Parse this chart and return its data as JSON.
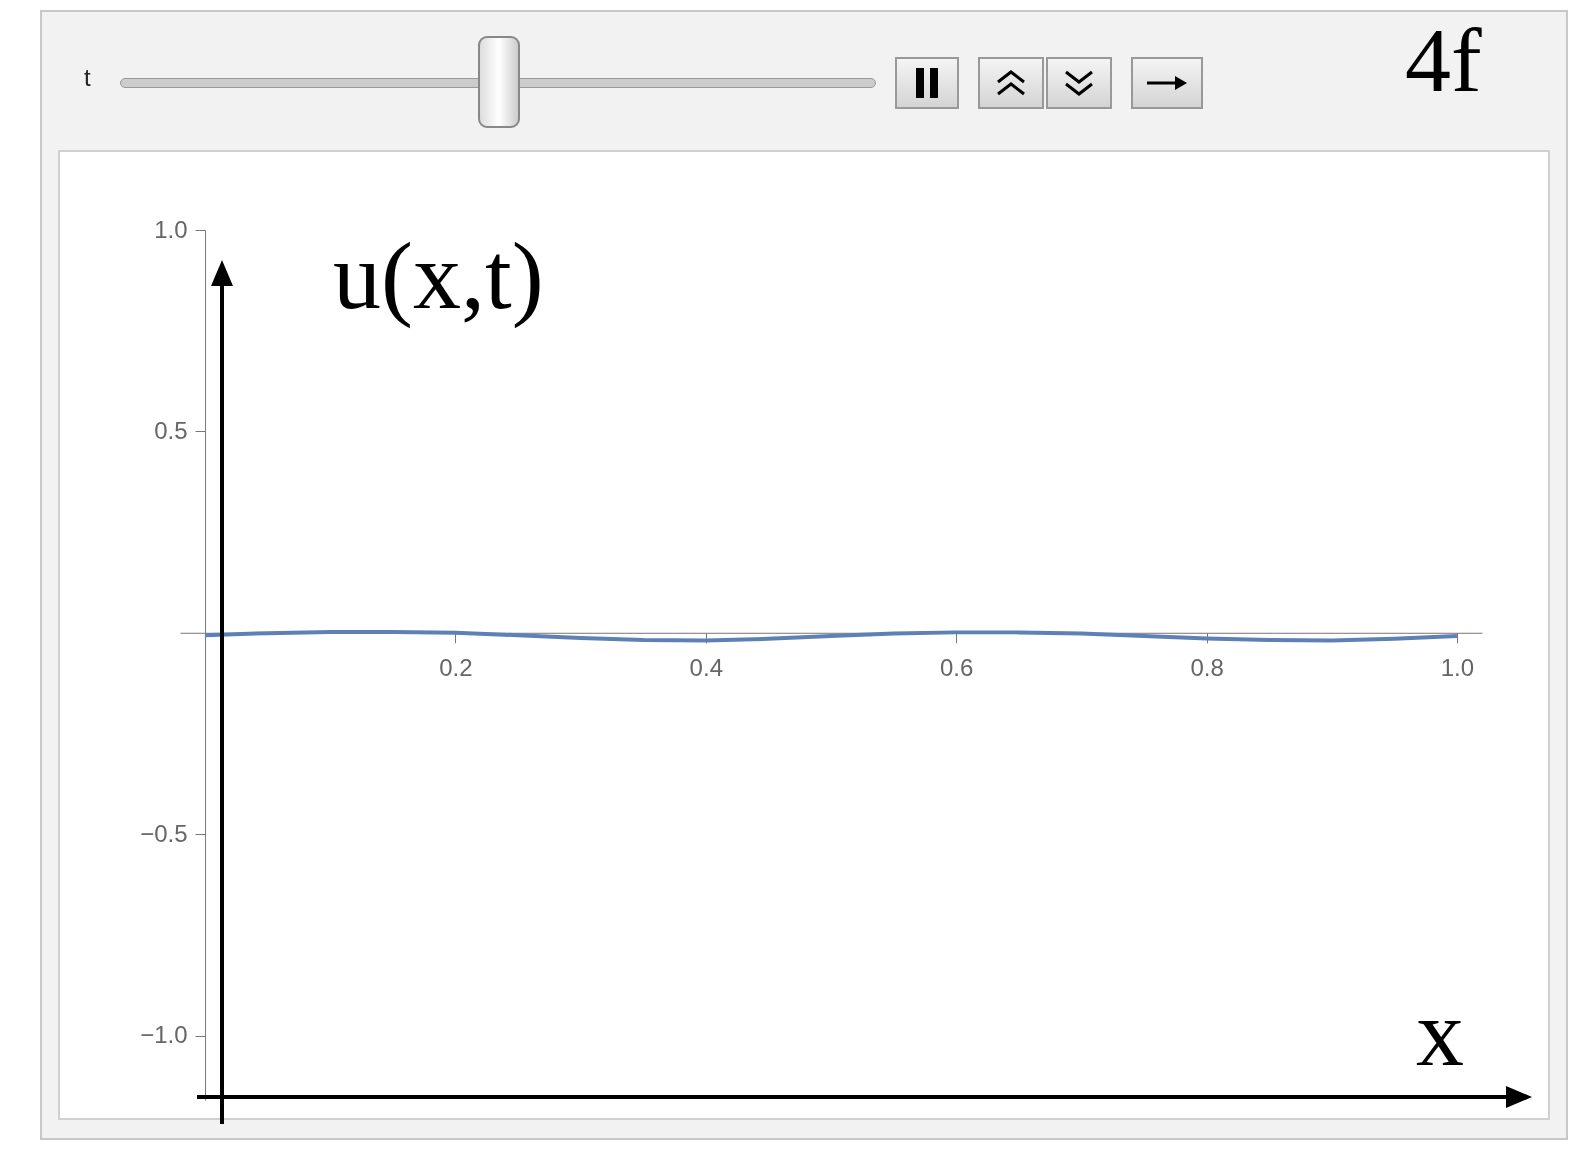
{
  "chart_data": {
    "type": "line",
    "title": "4f",
    "xlabel": "x",
    "ylabel": "u(x,t)",
    "annotations": [
      "t"
    ],
    "x": [
      0,
      0.05,
      0.1,
      0.15,
      0.2,
      0.25,
      0.3,
      0.35,
      0.4,
      0.45,
      0.5,
      0.55,
      0.6,
      0.65,
      0.7,
      0.75,
      0.8,
      0.85,
      0.9,
      0.95,
      1.0
    ],
    "series": [
      {
        "color": "#5e81b5",
        "values": [
          -0.006,
          -0.001,
          0.002,
          0.002,
          0.0,
          -0.006,
          -0.013,
          -0.018,
          -0.019,
          -0.015,
          -0.008,
          -0.002,
          0.001,
          0.001,
          -0.002,
          -0.008,
          -0.014,
          -0.018,
          -0.019,
          -0.015,
          -0.008
        ]
      }
    ],
    "xlim": [
      -0.02,
      1.02
    ],
    "ylim": [
      -1.16,
      1.0
    ],
    "xticks": [
      0.2,
      0.4,
      0.6,
      0.8,
      {
        "value": 1.0,
        "label": "1.0"
      }
    ],
    "yticks": [
      {
        "value": -1.0,
        "label": "−1.0"
      },
      {
        "value": -0.5,
        "label": "−0.5"
      },
      {
        "value": 0.5,
        "label": "0.5"
      },
      {
        "value": 1.0,
        "label": "1.0"
      }
    ],
    "grid": false,
    "legend": false
  }
}
